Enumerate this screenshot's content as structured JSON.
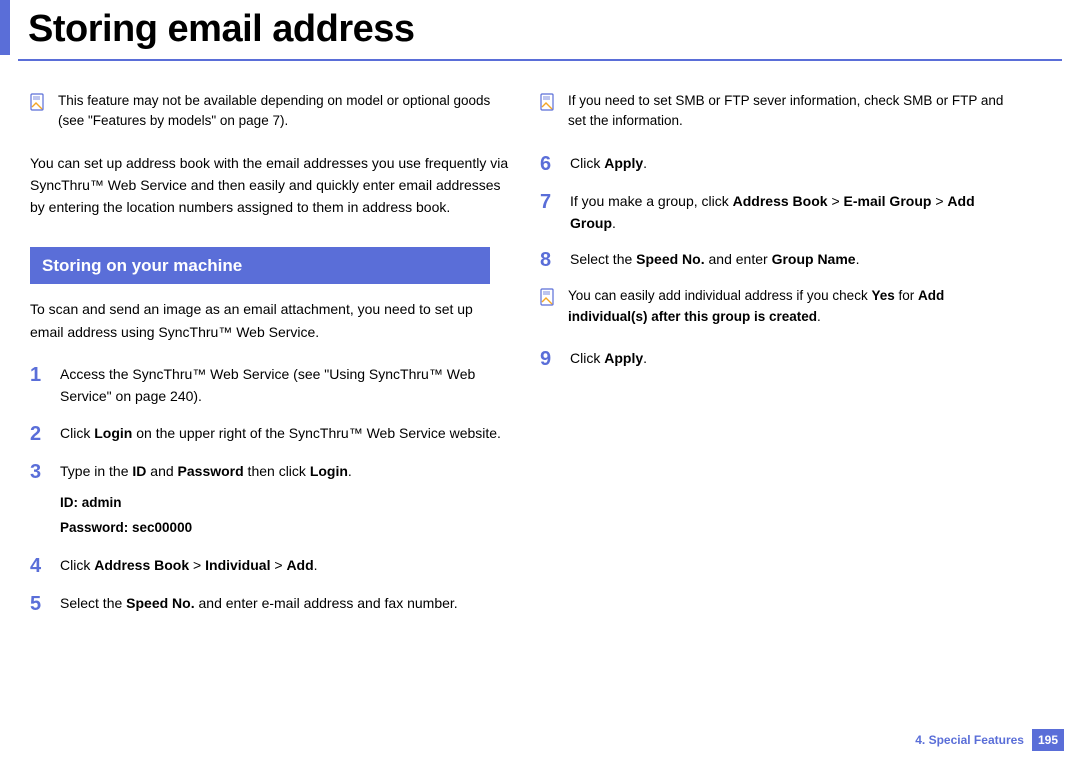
{
  "title": "Storing email address",
  "colors": {
    "accent": "#5a6ed8",
    "text": "#000000",
    "bg": "#ffffff"
  },
  "left": {
    "note": "This feature may not be available depending on model or optional goods (see \"Features by models\" on page 7).",
    "intro": "You can set up address book with the email addresses you use frequently via SyncThru™ Web Service and then easily and quickly enter email addresses by entering the location numbers assigned to them in address book.",
    "section_heading": "Storing on your machine",
    "section_intro": "To scan and send an image as an email attachment, you need to set up email address using SyncThru™ Web Service.",
    "steps": [
      {
        "n": "1",
        "html": "Access the SyncThru™ Web Service (see \"Using SyncThru™ Web Service\" on page 240)."
      },
      {
        "n": "2",
        "html": "Click <span class='b'>Login</span> on the upper right of the SyncThru™ Web Service website."
      },
      {
        "n": "3",
        "html": "Type in the <span class='b'>ID</span> and <span class='b'>Password</span> then click <span class='b'>Login</span>.",
        "sub1": "ID: admin",
        "sub2": "Password: sec00000"
      },
      {
        "n": "4",
        "html": "Click <span class='b'>Address Book</span> > <span class='b'>Individual</span> > <span class='b'>Add</span>."
      },
      {
        "n": "5",
        "html": "Select the <span class='b'>Speed No.</span> and enter e-mail address and fax number."
      }
    ]
  },
  "right": {
    "note1": "If you need to set SMB or FTP sever information, check SMB or FTP and set the information.",
    "steps1": [
      {
        "n": "6",
        "html": "Click <span class='b'>Apply</span>."
      },
      {
        "n": "7",
        "html": "If you make a group, click <span class='b'>Address Book</span> > <span class='b'>E-mail Group</span> > <span class='b'>Add Group</span>."
      },
      {
        "n": "8",
        "html": "Select the <span class='b'>Speed No.</span> and enter <span class='b'>Group Name</span>."
      }
    ],
    "note2_html": "You can easily add individual address if you check <span class='b'>Yes</span> for <span class='b'>Add individual(s) after this group is created</span>.",
    "steps2": [
      {
        "n": "9",
        "html": "Click <span class='b'>Apply</span>."
      }
    ]
  },
  "footer": {
    "chapter": "4.  Special Features",
    "page": "195"
  }
}
